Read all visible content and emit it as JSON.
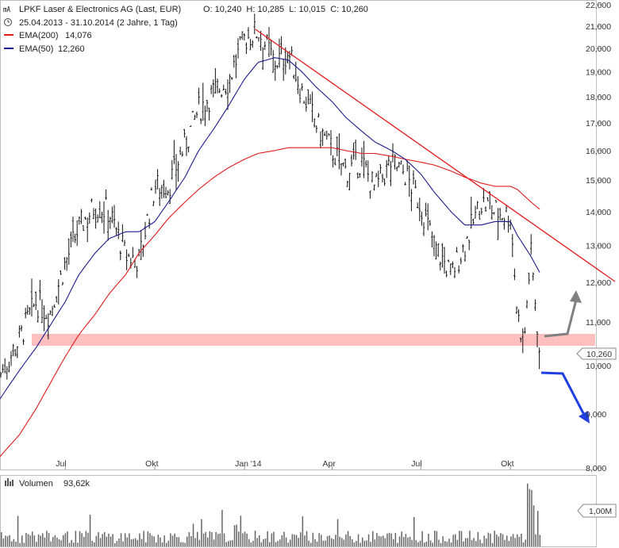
{
  "header": {
    "title": "LPKF Laser & Electronics AG (Last, EUR)",
    "ohlc": "O: 10,240  H: 10,285  L: 10,015  C: 10,260",
    "range": "25.04.2013 - 31.10.2014 (2 Jahre, 1 Tag)",
    "ema200_label": "EMA(200)",
    "ema200_value": "14,076",
    "ema50_label": "EMA(50)",
    "ema50_value": "12,260"
  },
  "volume": {
    "label": "Volumen",
    "value": "93,62k",
    "tick": "1,00M"
  },
  "last_price_label": "10,260",
  "colors": {
    "price": "#111111",
    "ema200": "#e41a1c",
    "ema50": "#1a1a8c",
    "trendline": "#e41a1c",
    "support_band": "#ffb8b8",
    "arrow_up": "#808080",
    "arrow_down": "#1f3fe0",
    "volume": "#666666"
  },
  "chart_data": {
    "type": "line",
    "title": "LPKF Laser & Electronics AG (Last, EUR)",
    "x_ticks": [
      "Jul",
      "Okt",
      "Jan '14",
      "Apr",
      "Jul",
      "Okt"
    ],
    "y_ticks": [
      "8,000",
      "9,000",
      "10,000",
      "11,000",
      "12,000",
      "13,000",
      "14,000",
      "15,000",
      "16,000",
      "17,000",
      "18,000",
      "19,000",
      "20,000",
      "21,000",
      "22,000"
    ],
    "ylim": [
      8,
      22
    ],
    "y_scale": "log",
    "x": [
      "2013-04-25",
      "2013-05-15",
      "2013-06-01",
      "2013-06-15",
      "2013-07-01",
      "2013-07-15",
      "2013-08-01",
      "2013-08-15",
      "2013-09-01",
      "2013-09-15",
      "2013-10-01",
      "2013-10-15",
      "2013-11-01",
      "2013-11-15",
      "2013-12-01",
      "2013-12-15",
      "2014-01-01",
      "2014-01-15",
      "2014-02-01",
      "2014-02-15",
      "2014-03-01",
      "2014-03-15",
      "2014-04-01",
      "2014-04-15",
      "2014-05-01",
      "2014-05-15",
      "2014-06-01",
      "2014-06-15",
      "2014-07-01",
      "2014-07-15",
      "2014-08-01",
      "2014-08-15",
      "2014-09-01",
      "2014-09-15",
      "2014-10-01",
      "2014-10-08",
      "2014-10-15",
      "2014-10-22",
      "2014-10-31"
    ],
    "series": [
      {
        "name": "LPKF Laser & Electronics AG",
        "values": [
          9.8,
          10.6,
          11.5,
          11.2,
          12.5,
          13.5,
          14.2,
          14.0,
          12.7,
          12.6,
          14.8,
          14.8,
          16.2,
          17.5,
          18.2,
          18.6,
          20.4,
          20.8,
          19.4,
          19.8,
          18.2,
          17.0,
          16.0,
          15.3,
          15.6,
          14.7,
          15.6,
          15.2,
          14.2,
          13.0,
          12.2,
          13.0,
          14.3,
          14.0,
          13.9,
          11.2,
          10.5,
          12.8,
          10.26
        ]
      },
      {
        "name": "EMA(200)",
        "values": [
          8.2,
          8.6,
          9.1,
          9.6,
          10.2,
          10.7,
          11.2,
          11.7,
          12.2,
          12.8,
          13.3,
          13.8,
          14.3,
          14.7,
          15.1,
          15.4,
          15.7,
          15.9,
          16.0,
          16.1,
          16.1,
          16.1,
          16.1,
          16.0,
          15.9,
          15.9,
          15.8,
          15.7,
          15.6,
          15.5,
          15.3,
          15.1,
          14.9,
          14.8,
          14.8,
          14.7,
          14.5,
          14.3,
          14.076
        ]
      },
      {
        "name": "EMA(50)",
        "values": [
          9.3,
          9.9,
          10.4,
          10.9,
          11.5,
          12.2,
          12.8,
          13.2,
          13.4,
          13.4,
          13.7,
          14.3,
          15.1,
          16.0,
          16.8,
          17.6,
          18.7,
          19.4,
          19.6,
          19.5,
          19.0,
          18.4,
          17.8,
          17.2,
          16.7,
          16.3,
          16.0,
          15.7,
          15.2,
          14.6,
          14.0,
          13.6,
          13.6,
          13.7,
          13.7,
          13.3,
          13.0,
          12.7,
          12.26
        ]
      }
    ],
    "volume_tick": "1,00M",
    "grid": false,
    "legend": "top-left"
  }
}
